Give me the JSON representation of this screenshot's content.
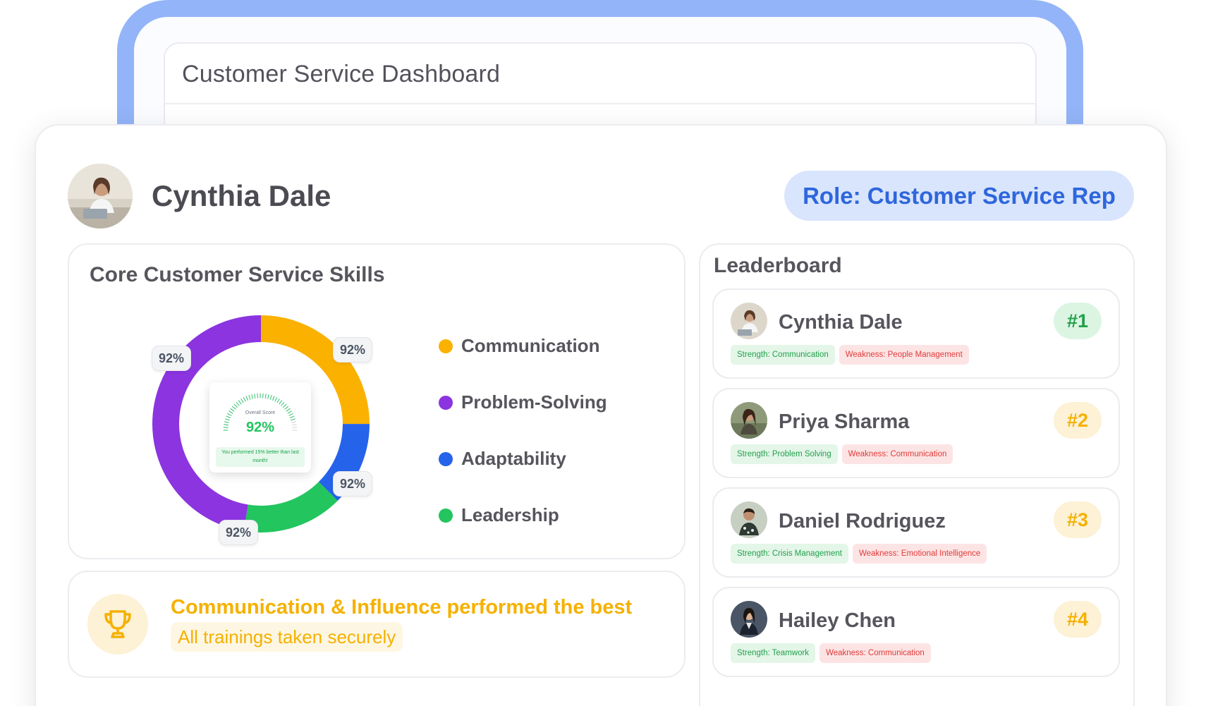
{
  "dashboard": {
    "title": "Customer Service Dashboard"
  },
  "profile": {
    "name": "Cynthia Dale",
    "role": "Role: Customer Service Rep"
  },
  "skills": {
    "title": "Core Customer Service Skills",
    "badges": [
      "92%",
      "92%",
      "92%",
      "92%"
    ],
    "overall": {
      "label": "Overall Score",
      "value": "92%",
      "note": "You performed 15% better than last month!"
    },
    "legend": [
      {
        "label": "Communication",
        "color": "#fbb100"
      },
      {
        "label": "Problem-Solving",
        "color": "#8b34e0"
      },
      {
        "label": "Adaptability",
        "color": "#2563eb"
      },
      {
        "label": "Leadership",
        "color": "#22c55e"
      }
    ],
    "segments": [
      {
        "color": "#fbb100",
        "share": 0.25
      },
      {
        "color": "#2563eb",
        "share": 0.125
      },
      {
        "color": "#22c55e",
        "share": 0.15
      },
      {
        "color": "#8b34e0",
        "share": 0.475
      }
    ]
  },
  "insight": {
    "title": "Communication & Influence performed the best",
    "subtitle": "All trainings taken securely",
    "icon": "trophy-icon"
  },
  "leaderboard": {
    "title": "Leaderboard",
    "entries": [
      {
        "name": "Cynthia Dale",
        "rank": "#1",
        "strength": "Strength: Communication",
        "weakness": "Weakness: People Management",
        "rank_bg": "#dcf5e3",
        "rank_color": "#22a04b"
      },
      {
        "name": "Priya Sharma",
        "rank": "#2",
        "strength": "Strength: Problem Solving",
        "weakness": "Weakness: Communication",
        "rank_bg": "#fdf1d6",
        "rank_color": "#f5b100"
      },
      {
        "name": "Daniel Rodriguez",
        "rank": "#3",
        "strength": "Strength: Crisis Management",
        "weakness": "Weakness: Emotional Intelligence",
        "rank_bg": "#fdf1d6",
        "rank_color": "#f5b100"
      },
      {
        "name": "Hailey Chen",
        "rank": "#4",
        "strength": "Strength: Teamwork",
        "weakness": "Weakness: Communication",
        "rank_bg": "#fdf1d6",
        "rank_color": "#f5b100"
      }
    ]
  }
}
